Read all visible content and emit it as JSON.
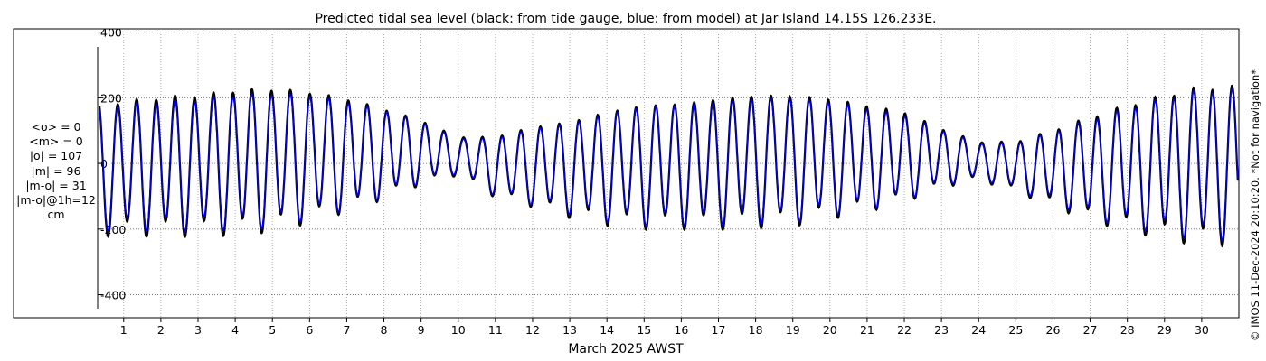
{
  "chart_data": {
    "type": "line",
    "title": "Predicted tidal sea level (black: from tide gauge, blue: from model) at Jar Island 14.15S 126.233E.",
    "xlabel": "March 2025 AWST",
    "ylabel": "",
    "x_tick_labels": [
      "1",
      "2",
      "3",
      "4",
      "5",
      "6",
      "7",
      "8",
      "9",
      "10",
      "11",
      "12",
      "13",
      "14",
      "15",
      "16",
      "17",
      "18",
      "19",
      "20",
      "21",
      "22",
      "23",
      "24",
      "25",
      "26",
      "27",
      "28",
      "29",
      "30"
    ],
    "y_ticks": [
      -400,
      -200,
      0,
      200,
      400
    ],
    "xlim_days": [
      0.3,
      31.0
    ],
    "ylim": [
      -470,
      410
    ],
    "grid": true,
    "copyright": "© IMOS 11-Dec-2024 20:10:20. *Not for navigation*",
    "stats": [
      "<o> = 0",
      "<m> = 0",
      "|o| = 107",
      "|m| = 96",
      "|m-o| = 31",
      "|m-o|@1h=12",
      "cm"
    ],
    "series": [
      {
        "color": "#000000",
        "daily_high": [
          185,
          200,
          205,
          220,
          225,
          215,
          195,
          165,
          130,
          80,
          80,
          110,
          125,
          155,
          175,
          180,
          195,
          205,
          205,
          195,
          175,
          155,
          105,
          65,
          65,
          100,
          140,
          175,
          205,
          230
        ],
        "daily_low": [
          -200,
          -200,
          -200,
          -195,
          -185,
          -160,
          -130,
          -95,
          -55,
          -30,
          -95,
          -120,
          -150,
          -170,
          -180,
          -180,
          -180,
          -175,
          -170,
          -150,
          -130,
          -105,
          -65,
          -45,
          -80,
          -120,
          -160,
          -185,
          -210,
          -225
        ]
      },
      {
        "color": "#0000dd",
        "daily_high": [
          175,
          185,
          190,
          205,
          210,
          205,
          185,
          160,
          125,
          75,
          75,
          105,
          120,
          150,
          170,
          175,
          185,
          195,
          195,
          185,
          165,
          145,
          100,
          60,
          60,
          95,
          130,
          165,
          195,
          220
        ],
        "daily_low": [
          -185,
          -185,
          -185,
          -180,
          -175,
          -150,
          -125,
          -90,
          -50,
          -25,
          -90,
          -115,
          -140,
          -160,
          -170,
          -170,
          -170,
          -165,
          -160,
          -140,
          -125,
          -100,
          -60,
          -40,
          -75,
          -110,
          -150,
          -175,
          -195,
          -210
        ]
      }
    ]
  }
}
